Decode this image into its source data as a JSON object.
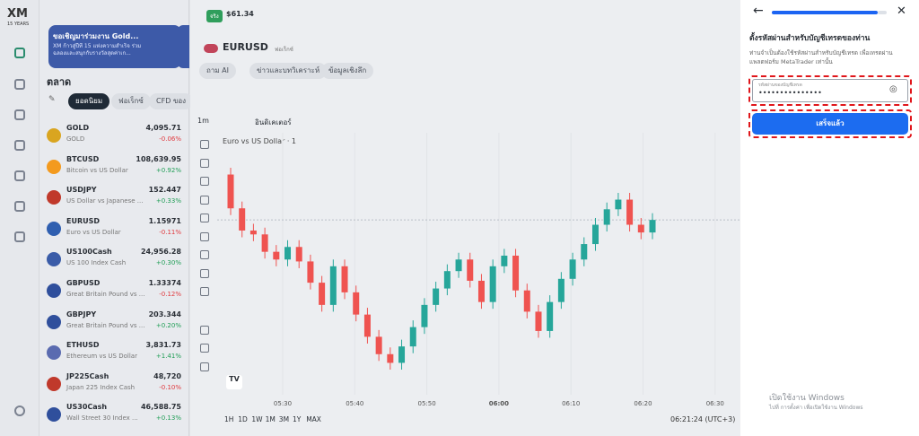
{
  "app": {
    "logo": "XM",
    "logo_sub": "15 YEARS"
  },
  "account": {
    "badge": "จริง",
    "balance": "$61.34"
  },
  "banner": {
    "title": "ขอเชิญมาร่วมงาน Gold...",
    "text": "XM ก้าวสู่ปีที่ 15 แห่งความสำเร็จ ร่วมฉลองและสนุกกับรางวัลสุดค่าเก..."
  },
  "market": {
    "title": "ตลาด",
    "tabs": [
      "ยอดนิยม",
      "ฟอเร็กซ์",
      "CFD ของ"
    ],
    "instruments": [
      {
        "symbol": "GOLD",
        "description": "GOLD",
        "price": "4,095.71",
        "change": "-0.06%"
      },
      {
        "symbol": "BTCUSD",
        "description": "Bitcoin vs US Dollar",
        "price": "108,639.95",
        "change": "+0.92%"
      },
      {
        "symbol": "USDJPY",
        "description": "US Dollar vs Japanese ...",
        "price": "152.447",
        "change": "+0.33%"
      },
      {
        "symbol": "EURUSD",
        "description": "Euro vs US Dollar",
        "price": "1.15971",
        "change": "-0.11%"
      },
      {
        "symbol": "US100Cash",
        "description": "US 100 Index Cash",
        "price": "24,956.28",
        "change": "+0.30%"
      },
      {
        "symbol": "GBPUSD",
        "description": "Great Britain Pound vs ...",
        "price": "1.33374",
        "change": "-0.12%"
      },
      {
        "symbol": "GBPJPY",
        "description": "Great Britain Pound vs ...",
        "price": "203.344",
        "change": "+0.20%"
      },
      {
        "symbol": "ETHUSD",
        "description": "Ethereum vs US Dollar",
        "price": "3,831.73",
        "change": "+1.41%"
      },
      {
        "symbol": "JP225Cash",
        "description": "Japan 225 Index Cash",
        "price": "48,720",
        "change": "-0.10%"
      },
      {
        "symbol": "US30Cash",
        "description": "Wall Street 30 Index ...",
        "price": "46,588.75",
        "change": "+0.13%"
      }
    ]
  },
  "chart_header": {
    "symbol": "EURUSD",
    "category": "ฟอเร็กซ์",
    "buttons": [
      "ถาม AI",
      "ข่าวและบทวิเคราะห์",
      "ข้อมูลเชิงลึก"
    ],
    "interval": "1m",
    "indicators": "อินดิเคเตอร์"
  },
  "chart_data": {
    "type": "candlestick",
    "title": "Euro vs US Dollar · 1",
    "x_labels": [
      "05:30",
      "05:40",
      "05:50",
      "06:00",
      "06:10",
      "06:20",
      "06:30"
    ],
    "up_color": "#26a69a",
    "down_color": "#ef5350",
    "open": [
      1.16018,
      1.15983,
      1.1596,
      1.15956,
      1.15938,
      1.1593,
      1.15943,
      1.15928,
      1.15906,
      1.15883,
      1.15923,
      1.15896,
      1.15873,
      1.1585,
      1.15832,
      1.15823,
      1.1584,
      1.1586,
      1.15883,
      1.159,
      1.15918,
      1.1593,
      1.15908,
      1.15886,
      1.15923,
      1.15934,
      1.15898,
      1.15876,
      1.15856,
      1.15886,
      1.1591,
      1.1593,
      1.15946,
      1.15966,
      1.15982,
      1.15992,
      1.15966,
      1.15958
    ],
    "high": [
      1.16025,
      1.1599,
      1.15967,
      1.15963,
      1.15945,
      1.1595,
      1.1595,
      1.15935,
      1.15913,
      1.1593,
      1.1593,
      1.15903,
      1.1588,
      1.15857,
      1.15839,
      1.15847,
      1.15867,
      1.1589,
      1.15907,
      1.15925,
      1.15937,
      1.15937,
      1.15915,
      1.1593,
      1.15941,
      1.15941,
      1.15905,
      1.15883,
      1.15893,
      1.15917,
      1.15937,
      1.15953,
      1.15973,
      1.15989,
      1.15999,
      1.15999,
      1.15973,
      1.15978
    ],
    "low": [
      1.15976,
      1.15953,
      1.15949,
      1.15931,
      1.15923,
      1.15923,
      1.15921,
      1.15899,
      1.15876,
      1.15876,
      1.15889,
      1.15866,
      1.15843,
      1.15825,
      1.15816,
      1.15816,
      1.15833,
      1.15853,
      1.15876,
      1.15893,
      1.15911,
      1.15901,
      1.15879,
      1.15879,
      1.15916,
      1.15891,
      1.15869,
      1.15849,
      1.15849,
      1.15879,
      1.15903,
      1.15923,
      1.15939,
      1.15959,
      1.15975,
      1.15959,
      1.15951,
      1.15951
    ],
    "close": [
      1.15983,
      1.1596,
      1.15956,
      1.15938,
      1.1593,
      1.15943,
      1.15928,
      1.15906,
      1.15883,
      1.15923,
      1.15896,
      1.15873,
      1.1585,
      1.15832,
      1.15823,
      1.1584,
      1.1586,
      1.15883,
      1.159,
      1.15918,
      1.1593,
      1.15908,
      1.15886,
      1.15923,
      1.15934,
      1.15898,
      1.15876,
      1.15856,
      1.15886,
      1.1591,
      1.1593,
      1.15946,
      1.15966,
      1.15982,
      1.15992,
      1.15966,
      1.15958,
      1.15971
    ]
  },
  "chart_footer": {
    "ranges": [
      "1H",
      "1D",
      "1W",
      "1M",
      "3M",
      "1Y",
      "MAX"
    ],
    "clock": "06:21:24 (UTC+3)"
  },
  "dialog": {
    "title": "ตั้งรหัสผ่านสำหรับบัญชีเทรดของท่าน",
    "description": "ท่านจำเป็นต้องใช้รหัสผ่านสำหรับบัญชีเทรด เพื่อเทรดผ่านแพลตฟอร์ม MetaTrader เท่านั้น",
    "field_label": "รหัสผ่านของบัญชีเทรด",
    "field_value": "•••••••••••••••",
    "button": "เสร็จแล้ว"
  },
  "watermark": {
    "title": "เปิดใช้งาน Windows",
    "text": "ไปที่ การตั้งค่า เพื่อเปิดใช้งาน Windows"
  }
}
